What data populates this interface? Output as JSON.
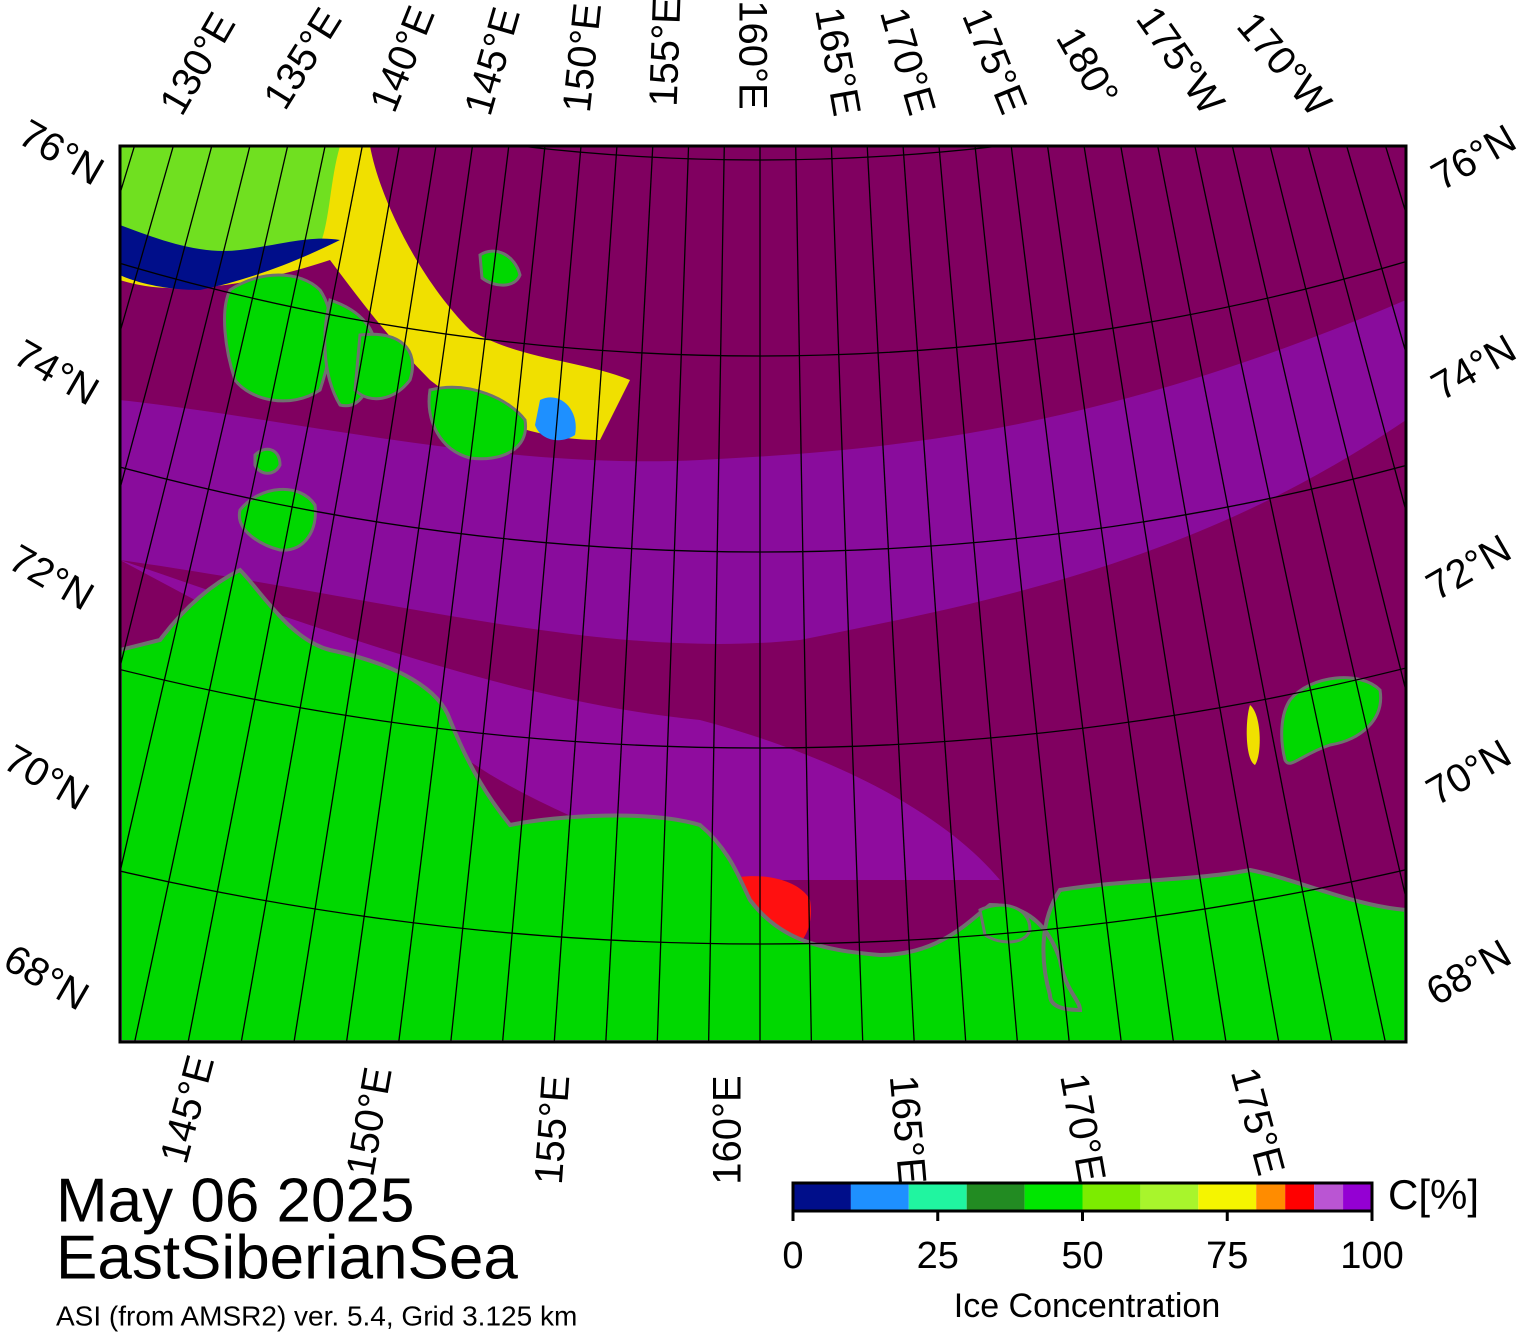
{
  "map": {
    "top_longitude_labels": [
      "130°E",
      "135°E",
      "140°E",
      "145°E",
      "150°E",
      "155°E",
      "160°E",
      "165°E",
      "170°E",
      "175°E",
      "180°",
      "175°W",
      "170°W"
    ],
    "bottom_longitude_labels": [
      "145°E",
      "150°E",
      "155°E",
      "160°E",
      "165°E",
      "170°E",
      "175°E"
    ],
    "left_latitude_labels": [
      "76°N",
      "74°N",
      "72°N",
      "70°N",
      "68°N"
    ],
    "right_latitude_labels": [
      "76°N",
      "74°N",
      "72°N",
      "70°N",
      "68°N"
    ]
  },
  "date": "May 06 2025",
  "region": "EastSiberianSea",
  "product": "ASI (from AMSR2) ver. 5.4,  Grid 3.125 km",
  "colorbar": {
    "title": "Ice Concentration",
    "unit_label": "C[%]",
    "bounds": [
      0,
      10,
      20,
      30,
      40,
      50,
      60,
      70,
      80,
      85,
      90,
      95,
      100
    ],
    "colors": [
      "#000e8a",
      "#1e90ff",
      "#20f5a0",
      "#228b22",
      "#00e600",
      "#7cec00",
      "#a8f52c",
      "#f5f500",
      "#ff8c00",
      "#ff0000",
      "#ba55d3",
      "#9400d3"
    ],
    "ticks": [
      0,
      25,
      50,
      75,
      100
    ]
  }
}
